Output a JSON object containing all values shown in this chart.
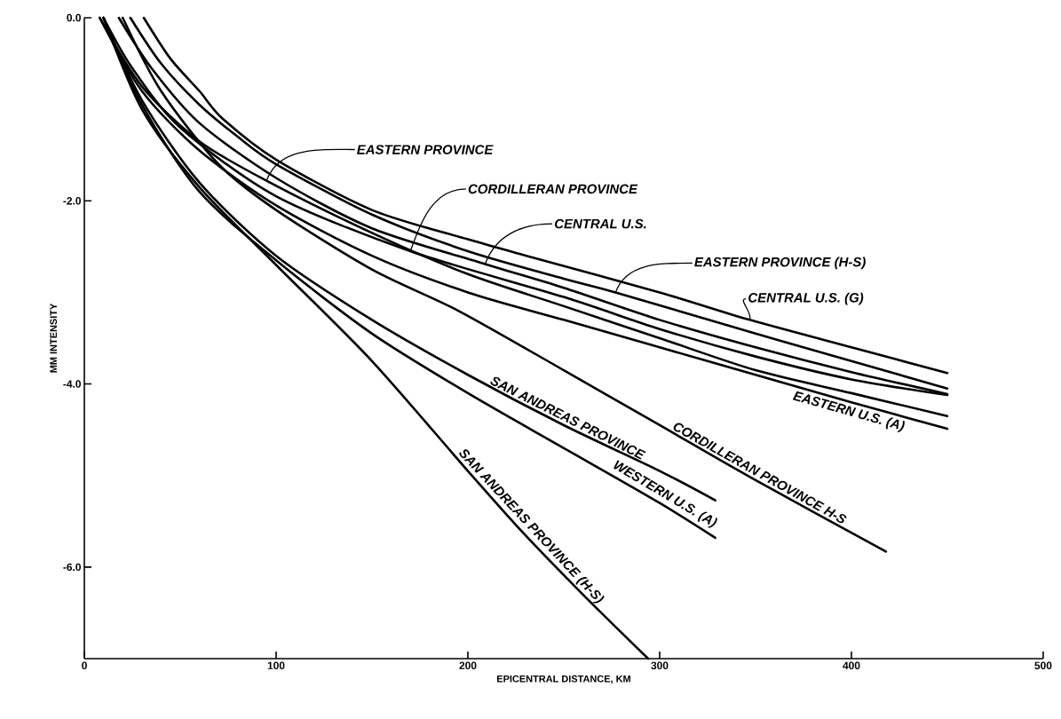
{
  "chart_data": {
    "type": "line",
    "xlabel": "EPICENTRAL DISTANCE, KM",
    "ylabel": "MM INTENSITY",
    "xlim": [
      0,
      500
    ],
    "ylim": [
      -7,
      0
    ],
    "xticks": [
      0,
      100,
      200,
      300,
      400,
      500
    ],
    "yticks": [
      {
        "value": 0,
        "label": "0.0"
      },
      {
        "value": -2,
        "label": "-2.0"
      },
      {
        "value": -4,
        "label": "-4.0"
      },
      {
        "value": -6,
        "label": "-6.0"
      }
    ],
    "series": [
      {
        "color": "#000000",
        "x": [
          31,
          45,
          60,
          72,
          100,
          150,
          200,
          234,
          300,
          347,
          400,
          450
        ],
        "values": [
          0,
          -0.45,
          -0.8,
          -1.1,
          -1.55,
          -2.1,
          -2.42,
          -2.62,
          -3.0,
          -3.3,
          -3.6,
          -3.88
        ]
      },
      {
        "color": "#000000",
        "x": [
          24,
          40,
          60,
          80,
          100,
          150,
          200,
          250,
          277,
          350,
          400,
          450
        ],
        "values": [
          0,
          -0.5,
          -0.95,
          -1.3,
          -1.6,
          -2.15,
          -2.55,
          -2.85,
          -3.0,
          -3.45,
          -3.75,
          -4.05
        ]
      },
      {
        "color": "#000000",
        "x": [
          18,
          35,
          60,
          100,
          150,
          209,
          250,
          300,
          350,
          400,
          450
        ],
        "values": [
          0,
          -0.55,
          -1.15,
          -1.75,
          -2.3,
          -2.69,
          -2.95,
          -3.3,
          -3.6,
          -3.87,
          -4.11
        ]
      },
      {
        "color": "#000000",
        "x": [
          10,
          25,
          50,
          100,
          170,
          250,
          300,
          350,
          400,
          450
        ],
        "values": [
          0,
          -0.55,
          -1.2,
          -1.95,
          -2.55,
          -3.05,
          -3.4,
          -3.7,
          -3.95,
          -4.12
        ]
      },
      {
        "color": "#000000",
        "x": [
          8,
          30,
          60,
          95,
          150,
          200,
          250,
          300,
          350,
          400,
          450
        ],
        "values": [
          0,
          -0.75,
          -1.35,
          -1.78,
          -2.35,
          -2.8,
          -3.15,
          -3.5,
          -3.85,
          -4.1,
          -4.35
        ]
      },
      {
        "color": "#000000",
        "x": [
          8,
          30,
          60,
          100,
          150,
          200,
          250,
          300,
          350,
          400,
          450
        ],
        "values": [
          0,
          -0.8,
          -1.45,
          -2.05,
          -2.6,
          -3.0,
          -3.3,
          -3.6,
          -3.9,
          -4.2,
          -4.49
        ]
      },
      {
        "color": "#000000",
        "x": [
          20,
          40,
          70,
          100,
          150,
          195,
          250,
          300,
          350,
          418
        ],
        "values": [
          0,
          -0.8,
          -1.6,
          -2.1,
          -2.75,
          -3.2,
          -3.85,
          -4.45,
          -5.05,
          -5.83
        ]
      },
      {
        "color": "#000000",
        "x": [
          10,
          30,
          60,
          100,
          150,
          200,
          250,
          300,
          329
        ],
        "values": [
          0,
          -0.9,
          -1.8,
          -2.6,
          -3.3,
          -3.9,
          -4.45,
          -4.95,
          -5.27
        ]
      },
      {
        "color": "#000000",
        "x": [
          10,
          30,
          60,
          100,
          150,
          200,
          250,
          300,
          329
        ],
        "values": [
          0,
          -0.95,
          -1.9,
          -2.65,
          -3.45,
          -4.1,
          -4.7,
          -5.3,
          -5.68
        ]
      },
      {
        "color": "#000000",
        "x": [
          10,
          30,
          60,
          100,
          150,
          200,
          229,
          260,
          294
        ],
        "values": [
          0,
          -1.0,
          -1.85,
          -2.7,
          -3.75,
          -4.95,
          -5.63,
          -6.3,
          -7.0
        ]
      }
    ],
    "annotations": [
      {
        "text": "CENTRAL U.S. (G)",
        "x": 347,
        "y": -3.3
      },
      {
        "text": "EASTERN PROVINCE (H-S)",
        "x": 277,
        "y": -3.0
      },
      {
        "text": "CENTRAL U.S.",
        "x": 209,
        "y": -2.69
      },
      {
        "text": "CORDILLERAN PROVINCE",
        "x": 170,
        "y": -2.55
      },
      {
        "text": "EASTERN PROVINCE",
        "x": 95,
        "y": -1.78
      },
      {
        "text": "EASTERN U.S. (A)",
        "x": 400,
        "y": -4.2
      },
      {
        "text": "CORDILLERAN PROVINCE H-S",
        "x": 350,
        "y": -5.05
      },
      {
        "text": "SAN ANDREAS PROVINCE",
        "x": 250,
        "y": -4.45
      },
      {
        "text": "WESTERN U.S. (A)",
        "x": 300,
        "y": -5.3
      },
      {
        "text": "SAN ANDREAS PROVINCE (H-S)",
        "x": 229,
        "y": -5.63
      }
    ]
  }
}
